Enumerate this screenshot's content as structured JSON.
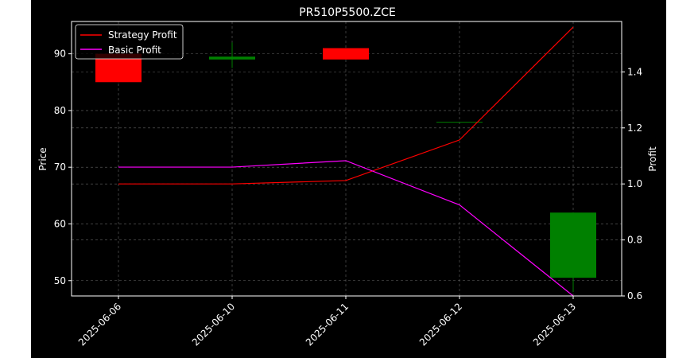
{
  "chart_data": {
    "type": "candlestick+line",
    "title": "PR510P5500.ZCE",
    "xlabel": "",
    "ylabel_left": "Price",
    "ylabel_right": "Profit",
    "categories": [
      "2025-06-06",
      "2025-06-10",
      "2025-06-11",
      "2025-06-12",
      "2025-06-13"
    ],
    "price_ylim": [
      47.3,
      95.7
    ],
    "price_yticks": [
      50,
      60,
      70,
      80,
      90
    ],
    "profit_ylim": [
      0.6,
      1.58
    ],
    "profit_yticks": [
      0.6,
      0.8,
      1.0,
      1.2,
      1.4
    ],
    "grid": true,
    "legend_position": "top-left",
    "candles": [
      {
        "date": "2025-06-06",
        "open": 90.0,
        "high": 90.0,
        "low": 85.0,
        "close": 85.0
      },
      {
        "date": "2025-06-10",
        "open": 89.0,
        "high": 92.0,
        "low": 87.5,
        "close": 89.5
      },
      {
        "date": "2025-06-11",
        "open": 91.0,
        "high": 91.0,
        "low": 89.0,
        "close": 89.0
      },
      {
        "date": "2025-06-12",
        "open": 78.0,
        "high": 78.0,
        "low": 78.0,
        "close": 78.0
      },
      {
        "date": "2025-06-13",
        "open": 50.5,
        "high": 62.0,
        "low": 48.0,
        "close": 62.0
      }
    ],
    "series": [
      {
        "name": "Strategy Profit",
        "color": "#ff0000",
        "values": [
          1.0,
          1.0,
          1.012,
          1.157,
          1.56
        ]
      },
      {
        "name": "Basic Profit",
        "color": "#ff00ff",
        "values": [
          1.06,
          1.06,
          1.083,
          0.925,
          0.6
        ]
      }
    ],
    "colors": {
      "up": "#008000",
      "down": "#ff0000",
      "background": "#000000",
      "axis": "#ffffff",
      "grid": "#808080"
    }
  }
}
